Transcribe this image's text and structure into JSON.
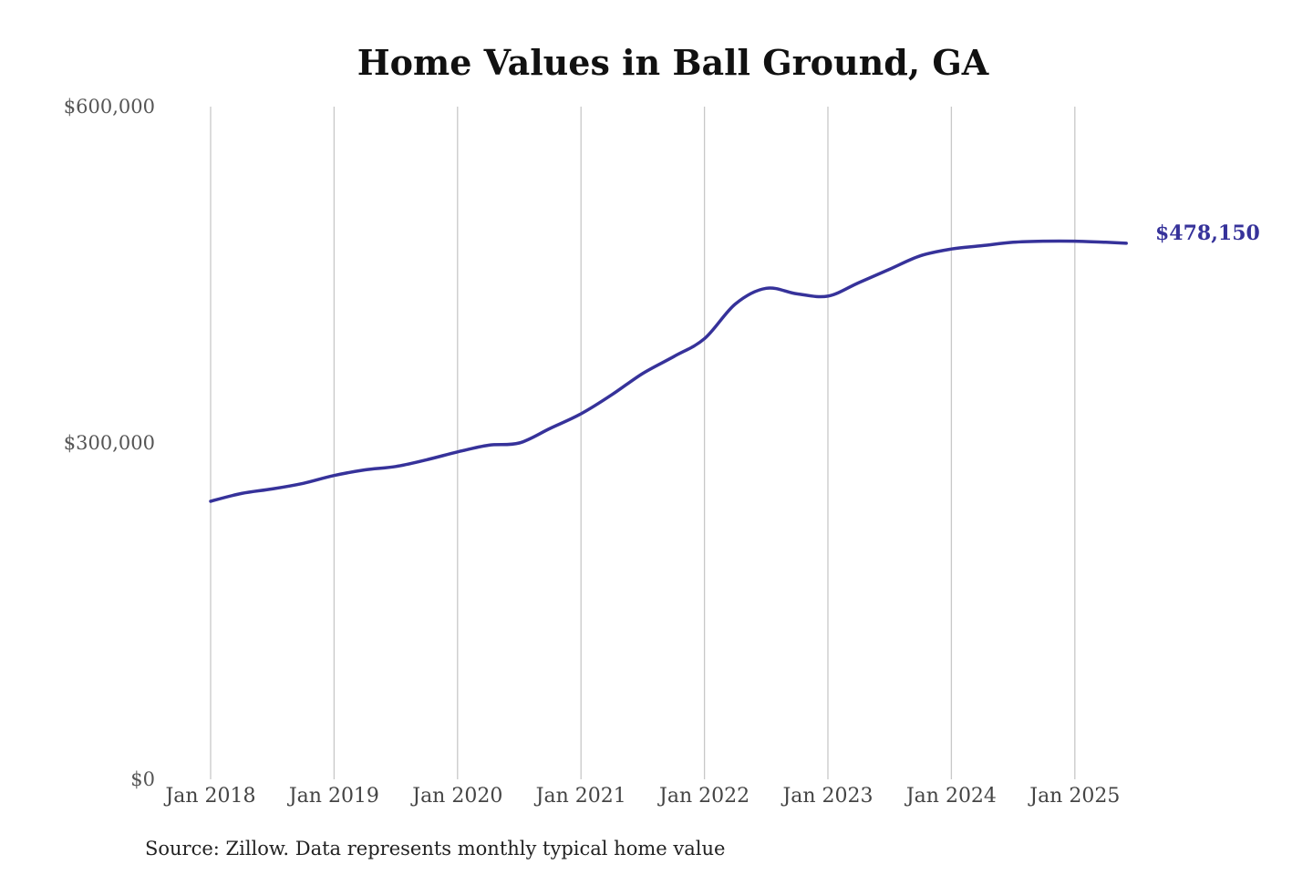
{
  "colors": {
    "line": "#36329a",
    "end_label": "#36329a",
    "grid": "#c8c8c8"
  },
  "chart_data": {
    "type": "line",
    "title": "Home Values in Ball Ground, GA",
    "xlabel": "",
    "ylabel": "",
    "ylim": [
      0,
      600000
    ],
    "y_ticks": [
      0,
      300000,
      600000
    ],
    "y_tick_labels": [
      "$0",
      "$300,000",
      "$600,000"
    ],
    "x_ticks": [
      "Jan 2018",
      "Jan 2019",
      "Jan 2020",
      "Jan 2021",
      "Jan 2022",
      "Jan 2023",
      "Jan 2024",
      "Jan 2025"
    ],
    "x_range": [
      "2018-01",
      "2025-06"
    ],
    "grid": "vertical at x ticks",
    "end_label": "$478,150",
    "source": "Source: Zillow. Data represents monthly typical home value",
    "series": [
      {
        "x": [
          "2018-01",
          "2018-04",
          "2018-07",
          "2018-10",
          "2019-01",
          "2019-04",
          "2019-07",
          "2019-10",
          "2020-01",
          "2020-04",
          "2020-07",
          "2020-10",
          "2021-01",
          "2021-04",
          "2021-07",
          "2021-10",
          "2022-01",
          "2022-04",
          "2022-07",
          "2022-10",
          "2023-01",
          "2023-04",
          "2023-07",
          "2023-10",
          "2024-01",
          "2024-04",
          "2024-07",
          "2024-10",
          "2025-01",
          "2025-04",
          "2025-06"
        ],
        "values": [
          248000,
          255000,
          259000,
          264000,
          271000,
          276000,
          279000,
          285000,
          292000,
          298000,
          300000,
          313000,
          326000,
          343000,
          362000,
          377000,
          393000,
          424000,
          438000,
          433000,
          431000,
          443000,
          455000,
          467000,
          473000,
          476000,
          479000,
          480000,
          480000,
          479000,
          478150
        ]
      }
    ]
  }
}
